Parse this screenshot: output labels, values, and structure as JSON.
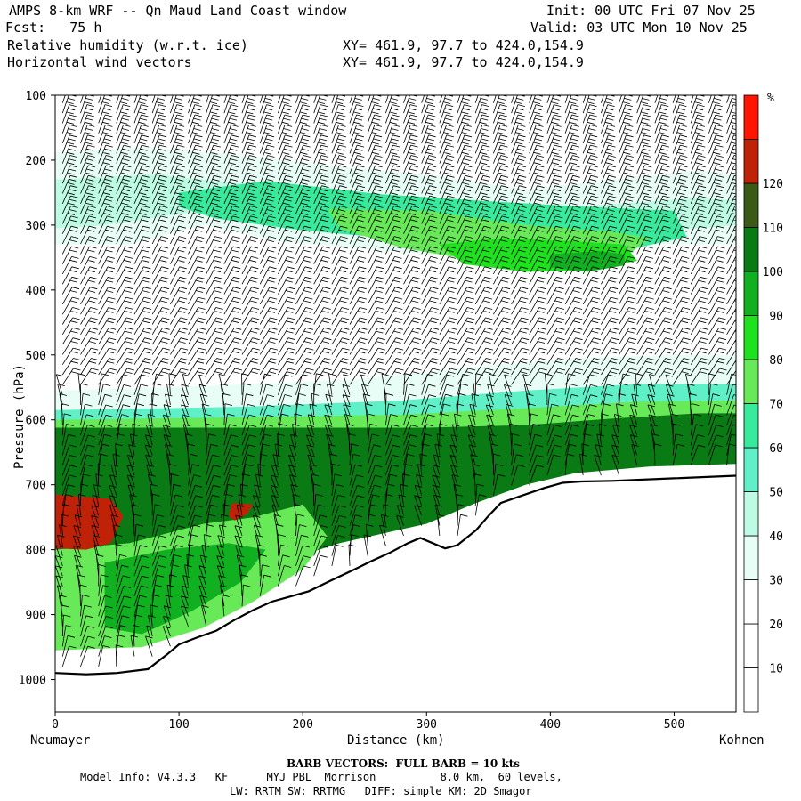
{
  "header": {
    "title": "AMPS 8-km WRF -- Qn Maud Land Coast window",
    "init": "Init: 00 UTC Fri 07 Nov 25",
    "fcst": "Fcst:   75 h",
    "valid": "Valid: 03 UTC Mon 10 Nov 25",
    "field1": "Relative humidity (w.r.t. ice)",
    "field1_xy": "XY= 461.9, 97.7 to 424.0,154.9",
    "field2": "Horizontal wind vectors",
    "field2_xy": "XY= 461.9, 97.7 to 424.0,154.9"
  },
  "chart_data": {
    "type": "heatmap",
    "title": "Relative humidity (w.r.t. ice)",
    "xlabel": "Distance (km)",
    "ylabel": "Pressure (hPa)",
    "xlim": [
      0,
      550
    ],
    "ylim": [
      100,
      1050
    ],
    "y_inverted": true,
    "x_ticks": [
      0,
      100,
      200,
      300,
      400,
      500
    ],
    "y_ticks": [
      100,
      200,
      300,
      400,
      500,
      600,
      700,
      800,
      900,
      1000
    ],
    "x_endpoint_labels": {
      "left": "Neumayer",
      "right": "Kohnen"
    },
    "colorbar": {
      "unit": "%",
      "levels": [
        0,
        10,
        20,
        30,
        40,
        50,
        60,
        70,
        80,
        90,
        100,
        110,
        120,
        130
      ],
      "tick_labels": [
        "10",
        "20",
        "30",
        "40",
        "50",
        "60",
        "70",
        "80",
        "90",
        "100",
        "110",
        "120"
      ],
      "colors": [
        "#ffffff",
        "#ffffff",
        "#ffffff",
        "#e8fdf5",
        "#bdfbe5",
        "#5ff0c7",
        "#38ea9c",
        "#68ea58",
        "#1ee21e",
        "#10b020",
        "#0a7a14",
        "#3a5a16",
        "#c02208",
        "#ff1500"
      ]
    },
    "terrain_surface_hPa": [
      [
        0,
        990
      ],
      [
        25,
        992
      ],
      [
        50,
        990
      ],
      [
        75,
        984
      ],
      [
        90,
        962
      ],
      [
        100,
        946
      ],
      [
        115,
        935
      ],
      [
        130,
        925
      ],
      [
        145,
        908
      ],
      [
        160,
        893
      ],
      [
        175,
        880
      ],
      [
        190,
        872
      ],
      [
        205,
        864
      ],
      [
        220,
        850
      ],
      [
        240,
        832
      ],
      [
        255,
        818
      ],
      [
        270,
        805
      ],
      [
        285,
        790
      ],
      [
        295,
        782
      ],
      [
        305,
        790
      ],
      [
        315,
        798
      ],
      [
        325,
        793
      ],
      [
        340,
        770
      ],
      [
        350,
        748
      ],
      [
        360,
        728
      ],
      [
        375,
        718
      ],
      [
        395,
        705
      ],
      [
        410,
        697
      ],
      [
        425,
        695
      ],
      [
        450,
        694
      ],
      [
        500,
        690
      ],
      [
        550,
        686
      ]
    ],
    "regions": [
      {
        "rh": 35,
        "desc": "humid band",
        "points": [
          [
            0,
            188
          ],
          [
            70,
            180
          ],
          [
            150,
            192
          ],
          [
            230,
            210
          ],
          [
            300,
            222
          ],
          [
            380,
            245
          ],
          [
            450,
            230
          ],
          [
            520,
            215
          ],
          [
            550,
            222
          ],
          [
            550,
            330
          ],
          [
            480,
            330
          ],
          [
            420,
            352
          ],
          [
            360,
            345
          ],
          [
            300,
            345
          ],
          [
            240,
            335
          ],
          [
            180,
            325
          ],
          [
            120,
            300
          ],
          [
            60,
            330
          ],
          [
            0,
            330
          ]
        ]
      },
      {
        "rh": 45,
        "desc": "humid band",
        "points": [
          [
            0,
            230
          ],
          [
            80,
            222
          ],
          [
            160,
            238
          ],
          [
            240,
            250
          ],
          [
            300,
            262
          ],
          [
            380,
            275
          ],
          [
            450,
            268
          ],
          [
            520,
            258
          ],
          [
            550,
            262
          ],
          [
            550,
            300
          ],
          [
            480,
            310
          ],
          [
            420,
            330
          ],
          [
            340,
            330
          ],
          [
            260,
            315
          ],
          [
            180,
            305
          ],
          [
            110,
            280
          ],
          [
            40,
            300
          ],
          [
            0,
            305
          ]
        ]
      },
      {
        "rh": 65,
        "desc": "upper moist",
        "points": [
          [
            100,
            250
          ],
          [
            170,
            232
          ],
          [
            260,
            252
          ],
          [
            340,
            262
          ],
          [
            430,
            272
          ],
          [
            500,
            278
          ],
          [
            510,
            318
          ],
          [
            440,
            348
          ],
          [
            360,
            342
          ],
          [
            280,
            322
          ],
          [
            200,
            308
          ],
          [
            130,
            290
          ],
          [
            100,
            272
          ]
        ]
      },
      {
        "rh": 75,
        "desc": "upper moist",
        "points": [
          [
            220,
            275
          ],
          [
            300,
            278
          ],
          [
            380,
            300
          ],
          [
            450,
            310
          ],
          [
            480,
            320
          ],
          [
            460,
            350
          ],
          [
            400,
            360
          ],
          [
            340,
            355
          ],
          [
            280,
            335
          ],
          [
            230,
            305
          ]
        ]
      },
      {
        "rh": 85,
        "desc": "upper core",
        "points": [
          [
            310,
            330
          ],
          [
            360,
            320
          ],
          [
            420,
            325
          ],
          [
            460,
            330
          ],
          [
            470,
            355
          ],
          [
            430,
            370
          ],
          [
            380,
            372
          ],
          [
            330,
            360
          ]
        ]
      },
      {
        "rh": 95,
        "desc": "upper core",
        "points": [
          [
            400,
            345
          ],
          [
            440,
            340
          ],
          [
            460,
            345
          ],
          [
            460,
            362
          ],
          [
            430,
            372
          ],
          [
            400,
            365
          ]
        ]
      },
      {
        "rh": 35,
        "desc": "lower light band",
        "points": [
          [
            0,
            555
          ],
          [
            120,
            548
          ],
          [
            240,
            538
          ],
          [
            330,
            520
          ],
          [
            420,
            505
          ],
          [
            500,
            500
          ],
          [
            550,
            500
          ],
          [
            550,
            560
          ],
          [
            450,
            572
          ],
          [
            330,
            585
          ],
          [
            200,
            590
          ],
          [
            0,
            595
          ]
        ]
      },
      {
        "rh": 55,
        "desc": "lower transition",
        "points": [
          [
            0,
            585
          ],
          [
            150,
            580
          ],
          [
            280,
            570
          ],
          [
            380,
            555
          ],
          [
            470,
            545
          ],
          [
            550,
            545
          ],
          [
            550,
            600
          ],
          [
            420,
            612
          ],
          [
            300,
            620
          ],
          [
            150,
            625
          ],
          [
            0,
            628
          ]
        ]
      },
      {
        "rh": 75,
        "desc": "lower transition",
        "points": [
          [
            0,
            600
          ],
          [
            150,
            596
          ],
          [
            280,
            592
          ],
          [
            380,
            582
          ],
          [
            470,
            572
          ],
          [
            550,
            570
          ],
          [
            550,
            640
          ],
          [
            450,
            645
          ],
          [
            300,
            650
          ],
          [
            150,
            652
          ],
          [
            0,
            655
          ]
        ]
      },
      {
        "rh": 105,
        "desc": "boundary layer",
        "points": [
          [
            0,
            612
          ],
          [
            150,
            612
          ],
          [
            300,
            612
          ],
          [
            380,
            608
          ],
          [
            450,
            598
          ],
          [
            520,
            590
          ],
          [
            550,
            590
          ],
          [
            550,
            668
          ],
          [
            480,
            672
          ],
          [
            420,
            682
          ],
          [
            380,
            700
          ],
          [
            340,
            728
          ],
          [
            300,
            760
          ],
          [
            230,
            790
          ],
          [
            180,
            820
          ],
          [
            130,
            860
          ],
          [
            80,
            900
          ],
          [
            40,
            940
          ],
          [
            0,
            950
          ]
        ]
      },
      {
        "rh": 75,
        "desc": "slope moist",
        "points": [
          [
            0,
            800
          ],
          [
            60,
            790
          ],
          [
            120,
            760
          ],
          [
            160,
            750
          ],
          [
            200,
            730
          ],
          [
            220,
            780
          ],
          [
            200,
            830
          ],
          [
            160,
            880
          ],
          [
            120,
            920
          ],
          [
            70,
            950
          ],
          [
            0,
            955
          ]
        ]
      },
      {
        "rh": 95,
        "desc": "slope moist",
        "points": [
          [
            40,
            820
          ],
          [
            90,
            800
          ],
          [
            140,
            790
          ],
          [
            170,
            800
          ],
          [
            150,
            850
          ],
          [
            110,
            895
          ],
          [
            70,
            930
          ],
          [
            40,
            920
          ]
        ]
      },
      {
        "rh": 125,
        "desc": "saturated pocket",
        "points": [
          [
            0,
            715
          ],
          [
            20,
            718
          ],
          [
            45,
            722
          ],
          [
            55,
            748
          ],
          [
            45,
            790
          ],
          [
            25,
            800
          ],
          [
            0,
            798
          ]
        ]
      },
      {
        "rh": 125,
        "desc": "saturated pocket",
        "points": [
          [
            143,
            728
          ],
          [
            160,
            730
          ],
          [
            155,
            745
          ],
          [
            145,
            755
          ],
          [
            140,
            748
          ]
        ]
      }
    ]
  },
  "footer": {
    "barb_note": "BARB VECTORS:  FULL BARB = 10 kts",
    "model_info": "Model Info: V4.3.3   KF      MYJ PBL  Morrison          8.0 km,  60 levels,",
    "physics": "LW: RRTM SW: RRTMG   DIFF: simple KM: 2D Smagor"
  }
}
